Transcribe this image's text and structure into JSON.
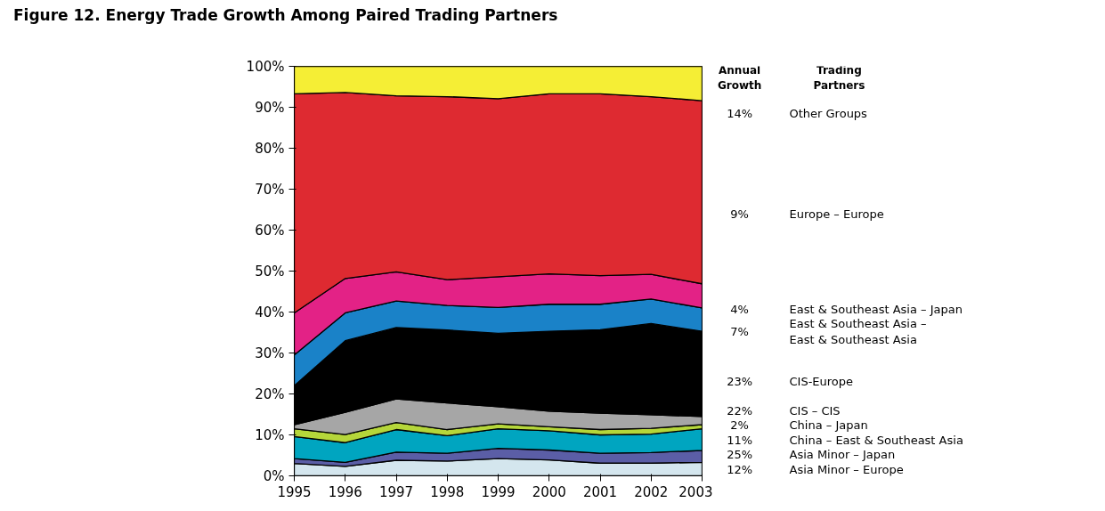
{
  "chart_data": {
    "type": "area",
    "stacked": true,
    "title": "Figure 12. Energy Trade Growth Among Paired Trading Partners",
    "x": [
      1995,
      1996,
      1997,
      1998,
      1999,
      2000,
      2001,
      2002,
      2003
    ],
    "xlim": [
      1995,
      2003
    ],
    "xticks": [
      1995,
      1996,
      1997,
      1998,
      1999,
      2000,
      2001,
      2002,
      2003
    ],
    "ylim": [
      0,
      100
    ],
    "yticks": [
      {
        "value": 0,
        "label": "0%"
      },
      {
        "value": 10,
        "label": "10%"
      },
      {
        "value": 20,
        "label": "20%"
      },
      {
        "value": 30,
        "label": "30%"
      },
      {
        "value": 40,
        "label": "40%"
      },
      {
        "value": 50,
        "label": "50%"
      },
      {
        "value": 60,
        "label": "60%"
      },
      {
        "value": 70,
        "label": "70%"
      },
      {
        "value": 80,
        "label": "80%"
      },
      {
        "value": 90,
        "label": "90%"
      },
      {
        "value": 100,
        "label": "100%"
      }
    ],
    "grid": false,
    "legend": "right",
    "annotations": [
      "Annual Growth",
      "Trading Partners",
      "12%",
      "25%",
      "11%",
      "2%",
      "22%",
      "23%",
      "7%",
      "4%",
      "9%",
      "14%"
    ],
    "series": [
      {
        "name": "Asia Minor – Europe",
        "color": "#d4e6ee",
        "values": [
          3,
          2.3,
          3.8,
          3.6,
          4.2,
          3.9,
          3.1,
          3.1,
          3.3
        ]
      },
      {
        "name": "Asia Minor – Japan",
        "color": "#5b5ea6",
        "values": [
          1.2,
          1.0,
          2.0,
          1.9,
          2.5,
          2.4,
          2.4,
          2.6,
          2.9
        ]
      },
      {
        "name": "China – East & Southeast Asia",
        "color": "#00a5c0",
        "values": [
          5.4,
          4.8,
          5.5,
          4.3,
          4.8,
          4.7,
          4.5,
          4.5,
          5.3
        ]
      },
      {
        "name": "China – Japan",
        "color": "#b5d63a",
        "values": [
          1.9,
          2.0,
          1.7,
          1.5,
          1.2,
          1.0,
          1.3,
          1.4,
          1.0
        ]
      },
      {
        "name": "CIS – CIS",
        "color": "#a6a6a6",
        "values": [
          1.0,
          5.4,
          5.8,
          6.5,
          4.2,
          3.8,
          4.0,
          3.3,
          2.0
        ]
      },
      {
        "name": "CIS-Europe",
        "color": "#000000",
        "values": [
          9.5,
          17.5,
          17.4,
          17.8,
          17.9,
          19.5,
          20.4,
          22.3,
          20.8
        ]
      },
      {
        "name": "East & Southeast Asia –\nEast & Southeast Asia",
        "color": "#1a82c8",
        "values": [
          7.5,
          6.8,
          6.5,
          6.0,
          6.3,
          6.6,
          6.2,
          6.0,
          5.7
        ]
      },
      {
        "name": "East & Southeast Asia – Japan",
        "color": "#e32286",
        "values": [
          10.3,
          8.4,
          7.1,
          6.3,
          7.5,
          7.4,
          7.0,
          6.0,
          5.9
        ]
      },
      {
        "name": "Europe – Europe",
        "color": "#de2a31",
        "values": [
          53.5,
          45.4,
          43.0,
          44.7,
          43.5,
          44.0,
          44.4,
          43.4,
          44.7
        ]
      },
      {
        "name": "Other Groups",
        "color": "#f5ee35",
        "values": [
          6.7,
          6.4,
          7.2,
          7.4,
          7.9,
          6.7,
          6.7,
          7.4,
          8.4
        ]
      }
    ]
  }
}
